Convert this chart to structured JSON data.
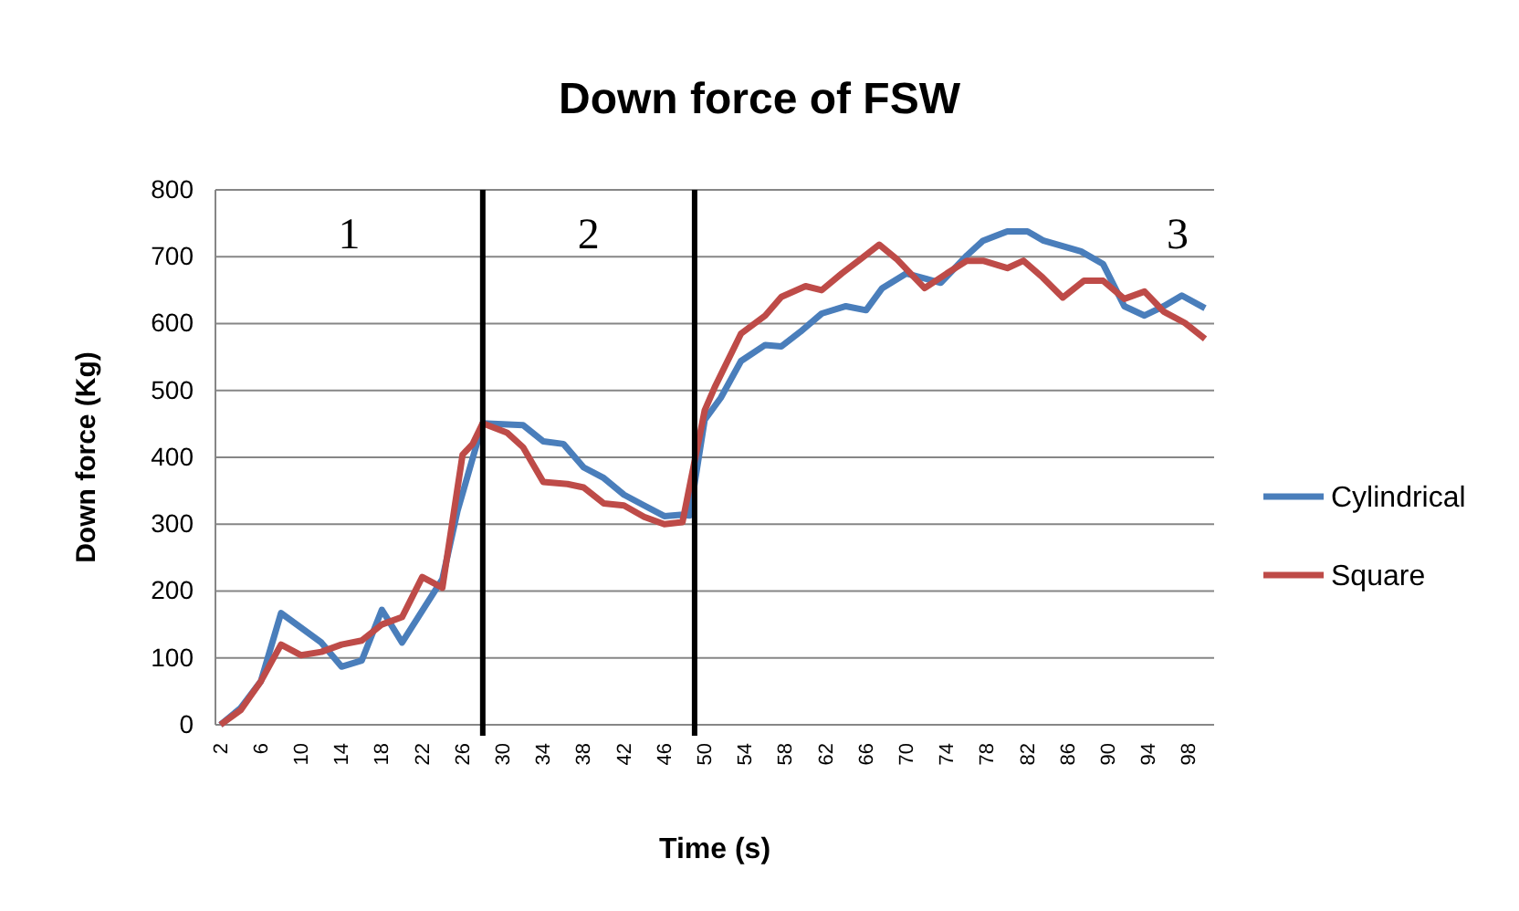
{
  "chart_data": {
    "type": "line",
    "title": "Down force of FSW",
    "xlabel": "Time (s)",
    "ylabel": "Down force (Kg)",
    "xlim": [
      1.5,
      100.5
    ],
    "xticks": [
      2,
      6,
      10,
      14,
      18,
      22,
      26,
      30,
      34,
      38,
      42,
      46,
      50,
      54,
      58,
      62,
      66,
      70,
      74,
      78,
      82,
      86,
      90,
      94,
      98
    ],
    "ylim": [
      0,
      800
    ],
    "yticks": [
      0,
      100,
      200,
      300,
      400,
      500,
      600,
      700,
      800
    ],
    "grid": "y",
    "legend": "right",
    "ref_lines": [
      {
        "axis": "x",
        "value": 28,
        "color": "#000000"
      },
      {
        "axis": "x",
        "value": 49,
        "color": "#000000"
      }
    ],
    "annotations": [
      "1",
      "2",
      "3"
    ],
    "series": [
      {
        "name": "Cylindrical",
        "color": "#4a7ebb",
        "x": [
          2,
          4,
          6,
          8,
          12,
          14,
          16,
          18,
          20,
          24,
          25.5,
          28,
          32,
          34,
          36,
          38,
          40,
          42,
          44,
          46,
          47.6,
          48.5,
          50,
          51.6,
          53.6,
          56,
          57.6,
          59.5,
          61.6,
          64,
          66,
          67.6,
          70,
          73.4,
          76,
          77.6,
          80,
          82,
          83.6,
          87.3,
          89.5,
          91.6,
          93.6,
          95.5,
          97.3,
          99.6
        ],
        "values": [
          0,
          25,
          65,
          167,
          123,
          87,
          96,
          172,
          123,
          218,
          320,
          451,
          448,
          424,
          420,
          385,
          369,
          344,
          328,
          312,
          314,
          313,
          456,
          489,
          544,
          568,
          566,
          588,
          615,
          626,
          620,
          653,
          675,
          661,
          702,
          724,
          738,
          738,
          724,
          708,
          689,
          626,
          612,
          626,
          642,
          623
        ]
      },
      {
        "name": "Square",
        "color": "#be4b48",
        "x": [
          2,
          4,
          6,
          8,
          10,
          12,
          14,
          16,
          18,
          20,
          22,
          24,
          26,
          27,
          28,
          30.4,
          32,
          34,
          36.4,
          38,
          40,
          42,
          44,
          46,
          47.8,
          50,
          51,
          53.6,
          56,
          57.6,
          60,
          61.6,
          63.6,
          65.5,
          67.3,
          69,
          71.8,
          74,
          76,
          77.6,
          80,
          81.6,
          83.5,
          85.5,
          87.6,
          89.5,
          91.6,
          93.6,
          95.5,
          97.6,
          99.6
        ],
        "values": [
          0,
          22,
          65,
          120,
          104,
          109,
          120,
          126,
          150,
          161,
          221,
          205,
          404,
          420,
          451,
          437,
          415,
          363,
          360,
          355,
          331,
          328,
          311,
          300,
          303,
          470,
          505,
          585,
          612,
          640,
          656,
          650,
          675,
          697,
          718,
          697,
          653,
          675,
          694,
          694,
          683,
          694,
          669,
          639,
          664,
          664,
          637,
          648,
          618,
          601,
          577
        ]
      }
    ]
  }
}
